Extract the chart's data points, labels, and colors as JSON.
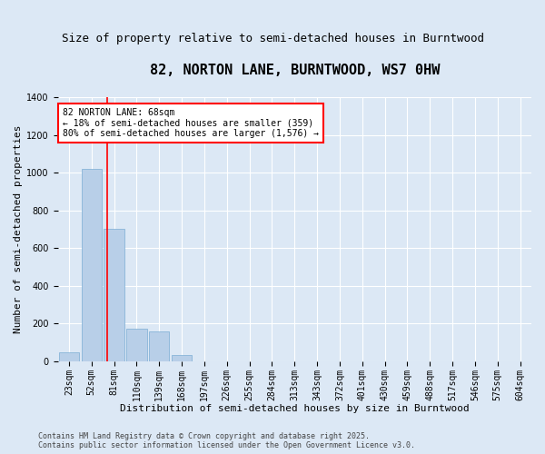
{
  "title": "82, NORTON LANE, BURNTWOOD, WS7 0HW",
  "subtitle": "Size of property relative to semi-detached houses in Burntwood",
  "xlabel": "Distribution of semi-detached houses by size in Burntwood",
  "ylabel": "Number of semi-detached properties",
  "footer_line1": "Contains HM Land Registry data © Crown copyright and database right 2025.",
  "footer_line2": "Contains public sector information licensed under the Open Government Licence v3.0.",
  "annotation_line1": "82 NORTON LANE: 68sqm",
  "annotation_line2": "← 18% of semi-detached houses are smaller (359)",
  "annotation_line3": "80% of semi-detached houses are larger (1,576) →",
  "bins": [
    "23sqm",
    "52sqm",
    "81sqm",
    "110sqm",
    "139sqm",
    "168sqm",
    "197sqm",
    "226sqm",
    "255sqm",
    "284sqm",
    "313sqm",
    "343sqm",
    "372sqm",
    "401sqm",
    "430sqm",
    "459sqm",
    "488sqm",
    "517sqm",
    "546sqm",
    "575sqm",
    "604sqm"
  ],
  "values": [
    50,
    1020,
    700,
    175,
    160,
    35,
    0,
    0,
    0,
    0,
    0,
    0,
    0,
    0,
    0,
    0,
    0,
    0,
    0,
    0,
    0
  ],
  "bar_color": "#b8cfe8",
  "bar_edge_color": "#7aadd4",
  "red_line_x": 1.68,
  "ylim": [
    0,
    1400
  ],
  "yticks": [
    0,
    200,
    400,
    600,
    800,
    1000,
    1200,
    1400
  ],
  "background_color": "#dce8f5",
  "title_fontsize": 11,
  "subtitle_fontsize": 9,
  "axis_label_fontsize": 8,
  "tick_fontsize": 7,
  "annotation_fontsize": 7,
  "footer_fontsize": 6
}
